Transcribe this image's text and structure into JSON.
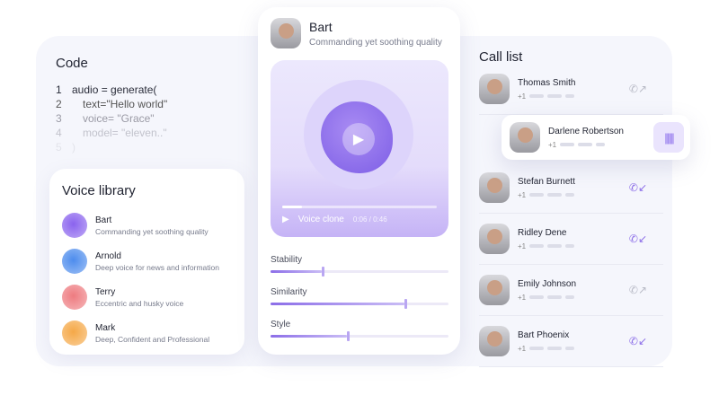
{
  "code": {
    "title": "Code",
    "lines": [
      {
        "n": "1",
        "t": "audio = generate(",
        "c": "#2a2d3a",
        "i": 0
      },
      {
        "n": "2",
        "t": "text=\"Hello world\"",
        "c": "#555",
        "i": 1
      },
      {
        "n": "3",
        "t": "voice= \"Grace\"",
        "c": "#9a9aa5",
        "i": 1
      },
      {
        "n": "4",
        "t": "model= \"eleven..\"",
        "c": "#c2c3cc",
        "i": 1
      },
      {
        "n": "5",
        "t": ")",
        "c": "#e2e3ea",
        "i": 0
      }
    ]
  },
  "voice_library": {
    "title": "Voice library",
    "items": [
      {
        "name": "Bart",
        "desc": "Commanding yet soothing quality",
        "color": "#8a63ee"
      },
      {
        "name": "Arnold",
        "desc": "Deep voice for news and information",
        "color": "#4d8ced"
      },
      {
        "name": "Terry",
        "desc": "Eccentric and husky voice",
        "color": "#ee7b80"
      },
      {
        "name": "Mark",
        "desc": "Deep, Confident and Professional",
        "color": "#f5a847"
      }
    ]
  },
  "voice": {
    "name": "Bart",
    "desc": "Commanding yet soothing quality",
    "player_label": "Voice clone",
    "time": "0:06 / 0:46",
    "progress": 0.13
  },
  "sliders": [
    {
      "label": "Stability",
      "value": 0.29
    },
    {
      "label": "Similarity",
      "value": 0.75
    },
    {
      "label": "Style",
      "value": 0.43
    }
  ],
  "call_list": {
    "title": "Call list",
    "prefix": "+1",
    "active": {
      "name": "Darlene Robertson"
    },
    "items": [
      {
        "name": "Thomas Smith",
        "type": "outgoing"
      },
      {
        "name": "Stefan Burnett",
        "type": "incoming"
      },
      {
        "name": "Ridley Dene",
        "type": "incoming"
      },
      {
        "name": "Emily Johnson",
        "type": "outgoing"
      },
      {
        "name": "Bart Phoenix",
        "type": "incoming"
      }
    ]
  },
  "colors": {
    "accent": "#8c6ee8",
    "incoming": "#8c6ee8",
    "outgoing": "#b8bac6"
  }
}
